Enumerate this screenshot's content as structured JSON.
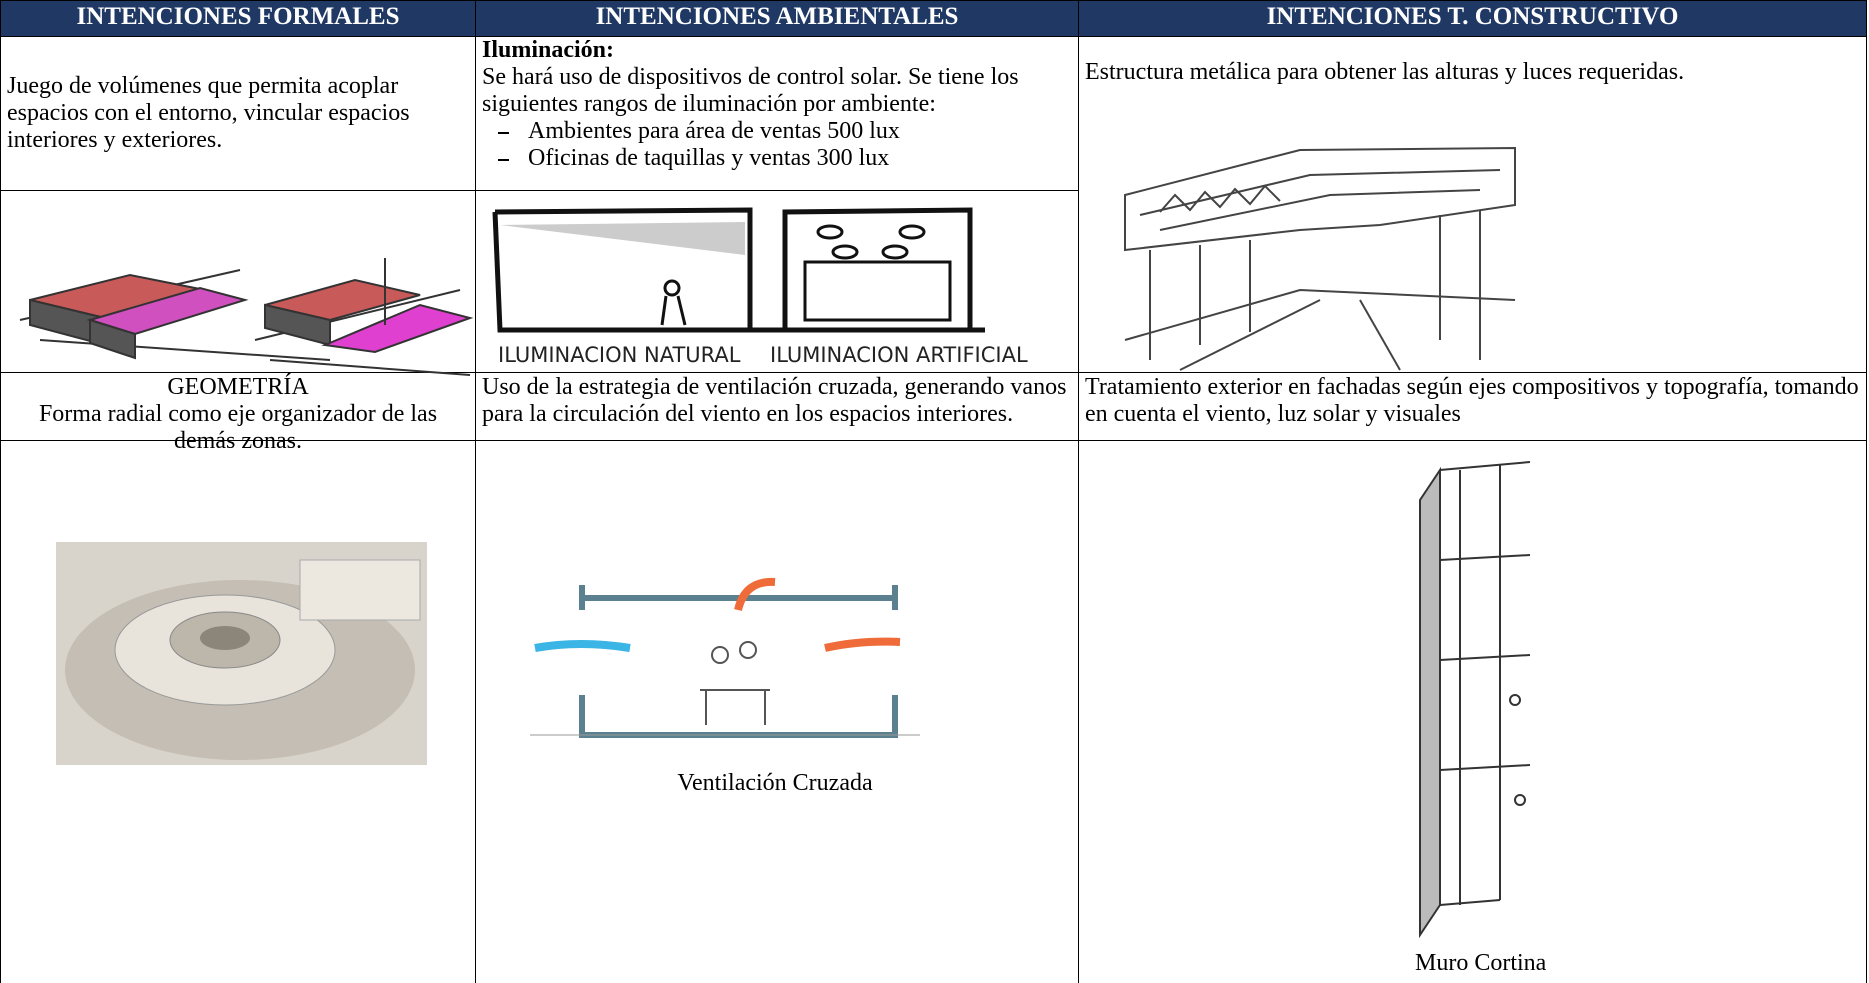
{
  "table": {
    "headers": [
      "INTENCIONES FORMALES",
      "INTENCIONES AMBIENTALES",
      "INTENCIONES T. CONSTRUCTIVO"
    ],
    "formal": {
      "text": "Juego de volúmenes que permita acoplar espacios con el entorno, vincular espacios interiores y exteriores.",
      "geometry_title": "GEOMETRÍA",
      "geometry_text": "Forma radial como eje organizador de las demás zonas."
    },
    "ambiental": {
      "title": "Iluminación:",
      "text": "Se hará uso de dispositivos de control solar. Se tiene los siguientes rangos de iluminación por ambiente:",
      "list": [
        "Ambientes para área de ventas 500 lux",
        "Oficinas de taquillas y ventas 300 lux"
      ],
      "image_labels": [
        "ILUMINACION NATURAL",
        "ILUMINACION ARTIFICIAL"
      ],
      "ventilation_text": "Uso de la estrategia de ventilación cruzada, generando vanos para la circulación del viento en los espacios interiores.",
      "ventilation_caption": "Ventilación Cruzada"
    },
    "constructivo": {
      "text": "Estructura metálica para obtener las alturas y luces requeridas.",
      "facade_text": "Tratamiento exterior en fachadas según ejes compositivos y topografía, tomando en cuenta el viento, luz solar y visuales",
      "facade_caption": "Muro Cortina"
    }
  }
}
